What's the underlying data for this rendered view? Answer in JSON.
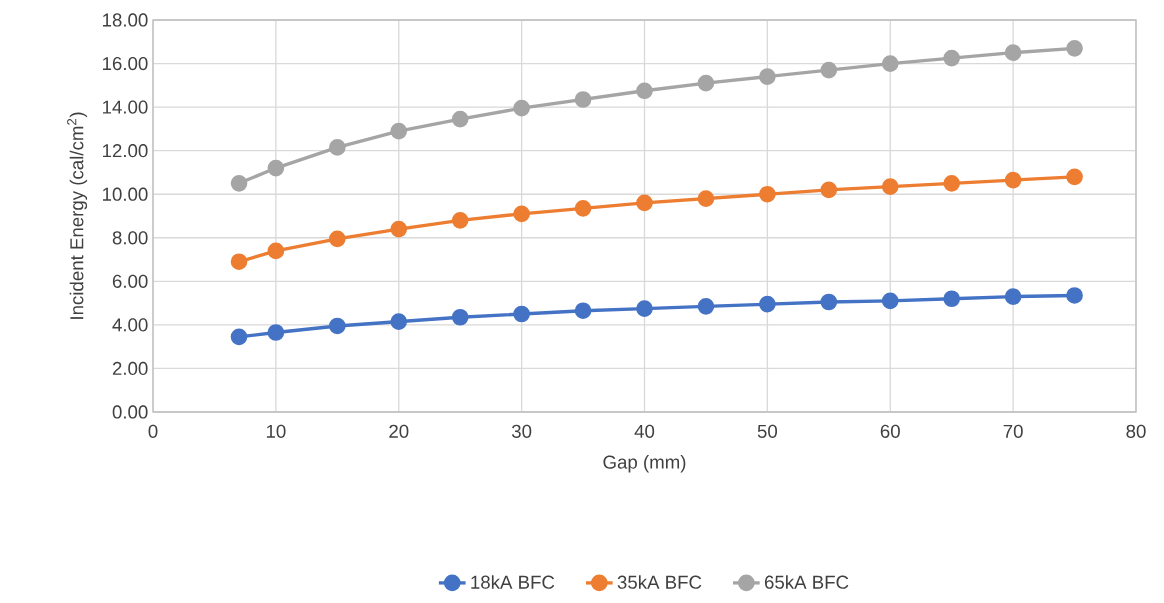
{
  "chart_data": {
    "type": "line",
    "xlabel": "Gap (mm)",
    "ylabel": "Incident Energy (cal/cm$^{2}$)",
    "x": [
      7,
      10,
      15,
      20,
      25,
      30,
      35,
      40,
      45,
      50,
      55,
      60,
      65,
      70,
      75
    ],
    "series": [
      {
        "name": "18kA BFC",
        "color": "#4472c4",
        "values": [
          3.45,
          3.65,
          3.95,
          4.15,
          4.35,
          4.5,
          4.65,
          4.75,
          4.85,
          4.95,
          5.05,
          5.1,
          5.2,
          5.3,
          5.35
        ]
      },
      {
        "name": "35kA BFC",
        "color": "#ed7d31",
        "values": [
          6.9,
          7.4,
          7.95,
          8.4,
          8.8,
          9.1,
          9.35,
          9.6,
          9.8,
          10.0,
          10.2,
          10.35,
          10.5,
          10.65,
          10.8
        ]
      },
      {
        "name": "65kA BFC",
        "color": "#a5a5a5",
        "values": [
          10.5,
          11.2,
          12.15,
          12.9,
          13.45,
          13.95,
          14.35,
          14.75,
          15.1,
          15.4,
          15.7,
          16.0,
          16.25,
          16.5,
          16.7
        ]
      }
    ],
    "xlim": [
      0,
      80
    ],
    "xticks": [
      0,
      10,
      20,
      30,
      40,
      50,
      60,
      70,
      80
    ],
    "ylim": [
      0,
      18
    ],
    "yticks": [
      {
        "value": 0,
        "label": "0.00"
      },
      {
        "value": 2,
        "label": "2.00"
      },
      {
        "value": 4,
        "label": "4.00"
      },
      {
        "value": 6,
        "label": "6.00"
      },
      {
        "value": 8,
        "label": "8.00"
      },
      {
        "value": 10,
        "label": "10.00"
      },
      {
        "value": 12,
        "label": "12.00"
      },
      {
        "value": 14,
        "label": "14.00"
      },
      {
        "value": 16,
        "label": "16.00"
      },
      {
        "value": 18,
        "label": "18.00"
      }
    ],
    "grid": true,
    "legend": "bottom",
    "marker": "circle",
    "line_style": "solid"
  }
}
